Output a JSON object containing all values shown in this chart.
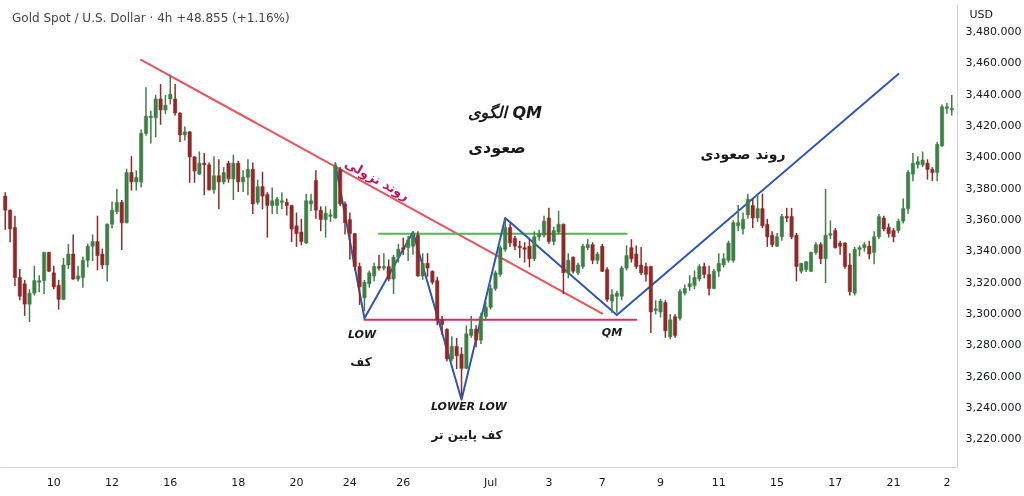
{
  "chart_data": {
    "type": "candlestick",
    "title": "Gold Spot / U.S. Dollar · 4h  +48.855 (+1.16%)",
    "ylabel": "USD",
    "categories": [
      null,
      null,
      null,
      null,
      null,
      null,
      null,
      null,
      null,
      null,
      "10",
      null,
      null,
      null,
      null,
      null,
      null,
      null,
      null,
      null,
      null,
      null,
      "12",
      null,
      null,
      null,
      null,
      null,
      null,
      null,
      null,
      null,
      null,
      null,
      "16",
      null,
      null,
      null,
      null,
      null,
      null,
      null,
      null,
      null,
      null,
      null,
      null,
      null,
      "18",
      null,
      null,
      null,
      null,
      null,
      null,
      null,
      null,
      null,
      null,
      null,
      "20",
      null,
      null,
      null,
      null,
      null,
      null,
      null,
      null,
      null,
      null,
      "24",
      null,
      null,
      null,
      null,
      null,
      null,
      null,
      null,
      null,
      null,
      "26",
      null,
      null,
      null,
      null,
      null,
      null,
      null,
      null,
      null,
      null,
      null,
      null,
      null,
      null,
      null,
      null,
      null,
      "Jul",
      null,
      null,
      null,
      null,
      null,
      null,
      null,
      null,
      null,
      null,
      null,
      "3",
      null,
      null,
      null,
      null,
      null,
      null,
      null,
      null,
      null,
      null,
      "7",
      null,
      null,
      null,
      null,
      null,
      null,
      null,
      null,
      null,
      null,
      null,
      "9",
      null,
      null,
      null,
      null,
      null,
      null,
      null,
      null,
      null,
      null,
      null,
      "11",
      null,
      null,
      null,
      null,
      null,
      null,
      null,
      null,
      null,
      null,
      null,
      "15",
      null,
      null,
      null,
      null,
      null,
      null,
      null,
      null,
      null,
      null,
      null,
      "17",
      null,
      null,
      null,
      null,
      null,
      null,
      null,
      null,
      null,
      null,
      null,
      "21",
      null,
      null,
      null,
      null,
      null,
      null,
      null,
      null,
      null,
      null,
      "2",
      null
    ],
    "ohlc": [
      [
        3375,
        3377,
        3354,
        3366
      ],
      [
        3366,
        3366,
        3346,
        3354
      ],
      [
        3355,
        3362,
        3318,
        3323
      ],
      [
        3323,
        3328,
        3309,
        3311
      ],
      [
        3319,
        3321,
        3299,
        3306
      ],
      [
        3306,
        3315,
        3295,
        3313
      ],
      [
        3313,
        3330,
        3312,
        3321
      ],
      [
        3320,
        3324,
        3314,
        3321
      ],
      [
        3321,
        3339,
        3313,
        3339
      ],
      [
        3339,
        3339,
        3327,
        3327
      ],
      [
        3326,
        3330,
        3316,
        3317
      ],
      [
        3318,
        3321,
        3303,
        3309
      ],
      [
        3309,
        3335,
        3309,
        3331
      ],
      [
        3331,
        3344,
        3329,
        3338
      ],
      [
        3338,
        3350,
        3322,
        3322
      ],
      [
        3322,
        3330,
        3321,
        3324
      ],
      [
        3323,
        3336,
        3317,
        3334
      ],
      [
        3334,
        3344,
        3330,
        3343
      ],
      [
        3343,
        3350,
        3334,
        3346
      ],
      [
        3346,
        3362,
        3328,
        3337
      ],
      [
        3338,
        3341,
        3329,
        3331
      ],
      [
        3331,
        3357,
        3321,
        3357
      ],
      [
        3357,
        3371,
        3355,
        3366
      ],
      [
        3365,
        3379,
        3364,
        3371
      ],
      [
        3371,
        3372,
        3341,
        3358
      ],
      [
        3358,
        3392,
        3358,
        3390
      ],
      [
        3390,
        3400,
        3379,
        3384
      ],
      [
        3384,
        3391,
        3379,
        3387
      ],
      [
        3384,
        3417,
        3381,
        3415
      ],
      [
        3415,
        3444,
        3414,
        3426
      ],
      [
        3425,
        3429,
        3409,
        3426
      ],
      [
        3425,
        3439,
        3413,
        3437
      ],
      [
        3437,
        3446,
        3421,
        3430
      ],
      [
        3430,
        3439,
        3428,
        3433
      ],
      [
        3437,
        3452,
        3434,
        3440
      ],
      [
        3437,
        3446,
        3427,
        3428
      ],
      [
        3428,
        3428,
        3410,
        3414
      ],
      [
        3414,
        3419,
        3411,
        3416
      ],
      [
        3416,
        3416,
        3384,
        3400
      ],
      [
        3400,
        3400,
        3384,
        3391
      ],
      [
        3389,
        3403,
        3389,
        3396
      ],
      [
        3396,
        3402,
        3376,
        3395
      ],
      [
        3395,
        3396,
        3379,
        3379
      ],
      [
        3379,
        3400,
        3377,
        3388
      ],
      [
        3388,
        3398,
        3367,
        3384
      ],
      [
        3384,
        3393,
        3383,
        3390
      ],
      [
        3396,
        3397,
        3384,
        3386
      ],
      [
        3386,
        3401,
        3373,
        3396
      ],
      [
        3396,
        3397,
        3378,
        3384
      ],
      [
        3384,
        3391,
        3378,
        3387
      ],
      [
        3387,
        3398,
        3376,
        3392
      ],
      [
        3392,
        3396,
        3364,
        3370
      ],
      [
        3371,
        3385,
        3370,
        3381
      ],
      [
        3381,
        3390,
        3367,
        3375
      ],
      [
        3376,
        3377,
        3349,
        3369
      ],
      [
        3369,
        3380,
        3364,
        3372
      ],
      [
        3369,
        3374,
        3364,
        3373
      ],
      [
        3371,
        3377,
        3367,
        3372
      ],
      [
        3371,
        3373,
        3363,
        3369
      ],
      [
        3369,
        3369,
        3346,
        3354
      ],
      [
        3356,
        3364,
        3343,
        3351
      ],
      [
        3352,
        3360,
        3344,
        3346
      ],
      [
        3345,
        3376,
        3345,
        3372
      ],
      [
        3370,
        3376,
        3366,
        3372
      ],
      [
        3385,
        3391,
        3361,
        3366
      ],
      [
        3366,
        3368,
        3353,
        3360
      ],
      [
        3360,
        3368,
        3349,
        3364
      ],
      [
        3362,
        3366,
        3359,
        3363
      ],
      [
        3361,
        3395,
        3361,
        3394
      ],
      [
        3392,
        3393,
        3369,
        3370
      ],
      [
        3370,
        3371,
        3351,
        3358
      ],
      [
        3360,
        3364,
        3335,
        3351
      ],
      [
        3351,
        3351,
        3328,
        3330
      ],
      [
        3330,
        3332,
        3306,
        3317
      ],
      [
        3310,
        3321,
        3302,
        3320
      ],
      [
        3319,
        3327,
        3317,
        3326
      ],
      [
        3324,
        3332,
        3321,
        3330
      ],
      [
        3330,
        3337,
        3328,
        3329
      ],
      [
        3329,
        3338,
        3328,
        3330
      ],
      [
        3330,
        3334,
        3321,
        3322
      ],
      [
        3322,
        3337,
        3313,
        3336
      ],
      [
        3336,
        3344,
        3333,
        3341
      ],
      [
        3342,
        3348,
        3338,
        3341
      ],
      [
        3342,
        3349,
        3334,
        3347
      ],
      [
        3343,
        3352,
        3338,
        3351
      ],
      [
        3350,
        3352,
        3324,
        3324
      ],
      [
        3324,
        3338,
        3322,
        3332
      ],
      [
        3332,
        3338,
        3324,
        3329
      ],
      [
        3327,
        3327,
        3319,
        3320
      ],
      [
        3321,
        3323,
        3293,
        3296
      ],
      [
        3296,
        3298,
        3287,
        3293
      ],
      [
        3290,
        3290,
        3270,
        3271
      ],
      [
        3271,
        3285,
        3270,
        3279
      ],
      [
        3279,
        3284,
        3265,
        3273
      ],
      [
        3274,
        3278,
        3248,
        3265
      ],
      [
        3265,
        3292,
        3265,
        3287
      ],
      [
        3286,
        3298,
        3285,
        3290
      ],
      [
        3290,
        3292,
        3279,
        3283
      ],
      [
        3283,
        3300,
        3281,
        3298
      ],
      [
        3298,
        3307,
        3296,
        3304
      ],
      [
        3304,
        3318,
        3303,
        3316
      ],
      [
        3316,
        3327,
        3315,
        3326
      ],
      [
        3325,
        3343,
        3324,
        3342
      ],
      [
        3341,
        3360,
        3340,
        3355
      ],
      [
        3355,
        3357,
        3343,
        3345
      ],
      [
        3348,
        3349,
        3341,
        3343
      ],
      [
        3343,
        3346,
        3336,
        3342
      ],
      [
        3342,
        3345,
        3333,
        3341
      ],
      [
        3343,
        3347,
        3330,
        3335
      ],
      [
        3335,
        3352,
        3334,
        3349
      ],
      [
        3349,
        3353,
        3347,
        3351
      ],
      [
        3350,
        3362,
        3349,
        3359
      ],
      [
        3361,
        3367,
        3345,
        3346
      ],
      [
        3346,
        3355,
        3344,
        3353
      ],
      [
        3352,
        3365,
        3351,
        3357
      ],
      [
        3357,
        3357,
        3313,
        3326
      ],
      [
        3326,
        3338,
        3323,
        3334
      ],
      [
        3336,
        3336,
        3326,
        3327
      ],
      [
        3326,
        3332,
        3325,
        3331
      ],
      [
        3330,
        3344,
        3329,
        3343
      ],
      [
        3342,
        3347,
        3341,
        3344
      ],
      [
        3344,
        3345,
        3332,
        3334
      ],
      [
        3334,
        3339,
        3332,
        3338
      ],
      [
        3343,
        3344,
        3327,
        3327
      ],
      [
        3328,
        3329,
        3308,
        3309
      ],
      [
        3308,
        3315,
        3301,
        3312
      ],
      [
        3311,
        3314,
        3301,
        3313
      ],
      [
        3311,
        3330,
        3309,
        3329
      ],
      [
        3329,
        3343,
        3328,
        3337
      ],
      [
        3342,
        3347,
        3333,
        3335
      ],
      [
        3338,
        3343,
        3329,
        3330
      ],
      [
        3331,
        3342,
        3325,
        3326
      ],
      [
        3330,
        3332,
        3321,
        3325
      ],
      [
        3330,
        3330,
        3288,
        3301
      ],
      [
        3302,
        3308,
        3300,
        3303
      ],
      [
        3301,
        3309,
        3298,
        3308
      ],
      [
        3307,
        3308,
        3285,
        3289
      ],
      [
        3285,
        3299,
        3284,
        3296
      ],
      [
        3298,
        3299,
        3285,
        3286
      ],
      [
        3297,
        3315,
        3296,
        3314
      ],
      [
        3313,
        3318,
        3312,
        3316
      ],
      [
        3317,
        3324,
        3315,
        3319
      ],
      [
        3318,
        3327,
        3316,
        3323
      ],
      [
        3322,
        3331,
        3321,
        3330
      ],
      [
        3330,
        3332,
        3323,
        3325
      ],
      [
        3325,
        3330,
        3312,
        3316
      ],
      [
        3316,
        3328,
        3316,
        3327
      ],
      [
        3327,
        3338,
        3324,
        3332
      ],
      [
        3331,
        3338,
        3330,
        3335
      ],
      [
        3334,
        3346,
        3333,
        3345
      ],
      [
        3334,
        3359,
        3333,
        3358
      ],
      [
        3356,
        3369,
        3353,
        3358
      ],
      [
        3354,
        3364,
        3351,
        3360
      ],
      [
        3363,
        3376,
        3361,
        3373
      ],
      [
        3369,
        3373,
        3355,
        3361
      ],
      [
        3361,
        3376,
        3359,
        3367
      ],
      [
        3367,
        3376,
        3355,
        3356
      ],
      [
        3357,
        3360,
        3343,
        3349
      ],
      [
        3350,
        3352,
        3343,
        3344
      ],
      [
        3343,
        3351,
        3343,
        3349
      ],
      [
        3349,
        3363,
        3347,
        3362
      ],
      [
        3362,
        3367,
        3359,
        3361
      ],
      [
        3362,
        3367,
        3348,
        3349
      ],
      [
        3350,
        3351,
        3321,
        3330
      ],
      [
        3327,
        3332,
        3326,
        3332
      ],
      [
        3328,
        3333,
        3327,
        3333
      ],
      [
        3327,
        3339,
        3327,
        3339
      ],
      [
        3339,
        3345,
        3338,
        3344
      ],
      [
        3344,
        3345,
        3332,
        3335
      ],
      [
        3335,
        3379,
        3320,
        3350
      ],
      [
        3350,
        3359,
        3348,
        3351
      ],
      [
        3353,
        3354,
        3342,
        3342
      ],
      [
        3345,
        3346,
        3338,
        3343
      ],
      [
        3345,
        3345,
        3329,
        3330
      ],
      [
        3331,
        3338,
        3312,
        3314
      ],
      [
        3313,
        3342,
        3312,
        3341
      ],
      [
        3341,
        3343,
        3337,
        3342
      ],
      [
        3342,
        3345,
        3340,
        3344
      ],
      [
        3343,
        3346,
        3335,
        3338
      ],
      [
        3339,
        3352,
        3332,
        3349
      ],
      [
        3349,
        3363,
        3348,
        3362
      ],
      [
        3361,
        3362,
        3353,
        3354
      ],
      [
        3355,
        3357,
        3349,
        3351
      ],
      [
        3353,
        3354,
        3346,
        3349
      ],
      [
        3353,
        3360,
        3352,
        3359
      ],
      [
        3359,
        3373,
        3358,
        3367
      ],
      [
        3367,
        3391,
        3364,
        3390
      ],
      [
        3389,
        3402,
        3385,
        3396
      ],
      [
        3395,
        3400,
        3393,
        3397
      ],
      [
        3395,
        3403,
        3394,
        3398
      ],
      [
        3396,
        3398,
        3386,
        3392
      ],
      [
        3392,
        3393,
        3385,
        3390
      ],
      [
        3390,
        3409,
        3385,
        3408
      ],
      [
        3407,
        3433,
        3407,
        3432
      ],
      [
        3431,
        3434,
        3428,
        3432
      ],
      [
        3430,
        3439,
        3427,
        3431
      ]
    ],
    "colors": [
      "#8e2a2a",
      "#8e2a2a",
      "#8e2a2a",
      "#8e2a2a",
      "#8e2a2a",
      "#3f7f47",
      "#3f7f47",
      "#3f7f47",
      "#3f7f47",
      "#8e2a2a",
      "#8e2a2a",
      "#8e2a2a",
      "#3f7f47",
      "#3f7f47",
      "#8e2a2a",
      "#3f7f47",
      "#3f7f47",
      "#3f7f47",
      "#3f7f47",
      "#8e2a2a",
      "#8e2a2a",
      "#3f7f47",
      "#3f7f47",
      "#3f7f47",
      "#8e2a2a",
      "#3f7f47",
      "#8e2a2a",
      "#3f7f47",
      "#3f7f47",
      "#3f7f47",
      "#3f7f47",
      "#3f7f47",
      "#8e2a2a",
      "#3f7f47",
      "#3f7f47",
      "#8e2a2a",
      "#8e2a2a",
      "#3f7f47",
      "#8e2a2a",
      "#8e2a2a",
      "#3f7f47",
      "#8e2a2a",
      "#8e2a2a",
      "#3f7f47",
      "#8e2a2a",
      "#3f7f47",
      "#8e2a2a",
      "#3f7f47",
      "#8e2a2a",
      "#3f7f47",
      "#3f7f47",
      "#8e2a2a",
      "#3f7f47",
      "#8e2a2a",
      "#8e2a2a",
      "#3f7f47",
      "#3f7f47",
      "#3f7f47",
      "#8e2a2a",
      "#8e2a2a",
      "#8e2a2a",
      "#8e2a2a",
      "#3f7f47",
      "#3f7f47",
      "#8e2a2a",
      "#8e2a2a",
      "#3f7f47",
      "#3f7f47",
      "#3f7f47",
      "#8e2a2a",
      "#8e2a2a",
      "#8e2a2a",
      "#8e2a2a",
      "#8e2a2a",
      "#3f7f47",
      "#3f7f47",
      "#3f7f47",
      "#8e2a2a",
      "#3f7f47",
      "#8e2a2a",
      "#3f7f47",
      "#3f7f47",
      "#8e2a2a",
      "#3f7f47",
      "#3f7f47",
      "#8e2a2a",
      "#3f7f47",
      "#8e2a2a",
      "#8e2a2a",
      "#8e2a2a",
      "#8e2a2a",
      "#8e2a2a",
      "#3f7f47",
      "#8e2a2a",
      "#8e2a2a",
      "#3f7f47",
      "#3f7f47",
      "#8e2a2a",
      "#3f7f47",
      "#3f7f47",
      "#3f7f47",
      "#3f7f47",
      "#3f7f47",
      "#3f7f47",
      "#8e2a2a",
      "#8e2a2a",
      "#8e2a2a",
      "#8e2a2a",
      "#8e2a2a",
      "#3f7f47",
      "#3f7f47",
      "#3f7f47",
      "#8e2a2a",
      "#3f7f47",
      "#3f7f47",
      "#8e2a2a",
      "#3f7f47",
      "#8e2a2a",
      "#3f7f47",
      "#3f7f47",
      "#3f7f47",
      "#8e2a2a",
      "#3f7f47",
      "#8e2a2a",
      "#8e2a2a",
      "#3f7f47",
      "#3f7f47",
      "#3f7f47",
      "#3f7f47",
      "#8e2a2a",
      "#8e2a2a",
      "#8e2a2a",
      "#8e2a2a",
      "#8e2a2a",
      "#3f7f47",
      "#3f7f47",
      "#8e2a2a",
      "#3f7f47",
      "#8e2a2a",
      "#3f7f47",
      "#3f7f47",
      "#3f7f47",
      "#3f7f47",
      "#3f7f47",
      "#8e2a2a",
      "#8e2a2a",
      "#3f7f47",
      "#3f7f47",
      "#3f7f47",
      "#3f7f47",
      "#3f7f47",
      "#3f7f47",
      "#3f7f47",
      "#3f7f47",
      "#8e2a2a",
      "#3f7f47",
      "#8e2a2a",
      "#8e2a2a",
      "#8e2a2a",
      "#3f7f47",
      "#3f7f47",
      "#8e2a2a",
      "#8e2a2a",
      "#8e2a2a",
      "#3f7f47",
      "#3f7f47",
      "#3f7f47",
      "#3f7f47",
      "#8e2a2a",
      "#3f7f47",
      "#3f7f47",
      "#8e2a2a",
      "#8e2a2a",
      "#8e2a2a",
      "#8e2a2a",
      "#3f7f47",
      "#3f7f47",
      "#3f7f47",
      "#8e2a2a",
      "#3f7f47",
      "#3f7f47",
      "#8e2a2a",
      "#8e2a2a",
      "#8e2a2a",
      "#3f7f47",
      "#3f7f47",
      "#3f7f47",
      "#3f7f47",
      "#3f7f47",
      "#3f7f47",
      "#8e2a2a",
      "#8e2a2a",
      "#3f7f47",
      "#3f7f47",
      "#3f7f47",
      "#3f7f47"
    ],
    "series": [
      {
        "type": "line",
        "color": "#e8535d",
        "values": [
          null,
          null,
          null,
          null,
          null,
          null,
          null,
          null,
          null,
          null,
          null,
          null,
          null,
          null,
          null,
          null,
          null,
          null,
          null,
          null,
          null,
          null,
          null,
          null,
          null,
          null,
          null,
          null,
          3462,
          null,
          null,
          null,
          null,
          null,
          null,
          null,
          null,
          null,
          null,
          null,
          null,
          null,
          null,
          null,
          null,
          null,
          null,
          null,
          null,
          null,
          null,
          null,
          null,
          null,
          null,
          null,
          null,
          null,
          null,
          null,
          null,
          null,
          null,
          null,
          null,
          null,
          null,
          null,
          null,
          null,
          null,
          null,
          null,
          null,
          null,
          null,
          null,
          null,
          null,
          null,
          null,
          null,
          null,
          null,
          null,
          null,
          null,
          null,
          null,
          null,
          null,
          null,
          null,
          null,
          null,
          null,
          null,
          null,
          null,
          null,
          null,
          null,
          null,
          null,
          null,
          null,
          null,
          null,
          null,
          null,
          null,
          null,
          null,
          null,
          null,
          null,
          null,
          null,
          null,
          null,
          null,
          null,
          null,
          3300,
          null,
          null,
          null,
          null,
          null,
          null,
          null,
          null,
          null,
          null,
          null,
          null,
          null,
          null,
          null,
          null,
          null,
          null,
          null,
          null,
          null,
          null,
          null,
          null,
          null,
          null,
          null,
          null,
          null,
          null,
          null,
          null,
          null,
          null,
          null,
          null,
          null,
          null,
          null,
          null,
          null,
          null,
          null,
          null,
          null,
          null,
          null,
          null,
          null,
          null,
          null,
          null,
          null,
          null,
          null,
          null,
          null,
          null,
          null,
          null,
          null,
          null,
          null,
          null,
          null,
          null,
          null,
          null,
          null,
          null,
          null,
          null
        ]
      },
      {
        "type": "line",
        "color": "#4cbb4c",
        "values": [
          null,
          null,
          null,
          null,
          null,
          null,
          null,
          null,
          null,
          null,
          null,
          null,
          null,
          null,
          null,
          null,
          null,
          null,
          null,
          null,
          null,
          null,
          null,
          null,
          null,
          null,
          null,
          null,
          null,
          null,
          null,
          null,
          null,
          null,
          null,
          null,
          null,
          null,
          null,
          null,
          null,
          null,
          null,
          null,
          null,
          null,
          null,
          null,
          null,
          null,
          null,
          null,
          null,
          null,
          null,
          null,
          null,
          null,
          null,
          null,
          null,
          null,
          null,
          null,
          null,
          null,
          null,
          null,
          null,
          null,
          null,
          null,
          null,
          null,
          null,
          null,
          null,
          3351,
          null,
          null,
          null,
          null,
          null,
          null,
          null,
          null,
          null,
          null,
          null,
          null,
          null,
          null,
          null,
          null,
          null,
          null,
          null,
          null,
          null,
          null,
          null,
          null,
          null,
          null,
          null,
          null,
          null,
          null,
          null,
          null,
          null,
          null,
          null,
          null,
          null,
          null,
          null,
          null,
          null,
          null,
          null,
          null,
          null,
          null,
          null,
          null,
          null,
          null,
          3351,
          null,
          null,
          null,
          null,
          null,
          null,
          null,
          null,
          null,
          null,
          null,
          null,
          null,
          null,
          null,
          null,
          null,
          null,
          null,
          null,
          null,
          null,
          null,
          null,
          null,
          null,
          null,
          null,
          null,
          null,
          null,
          null,
          null,
          null,
          null,
          null,
          null,
          null,
          null,
          null,
          null,
          null,
          null,
          null,
          null,
          null,
          null,
          null,
          null,
          null,
          null,
          null,
          null,
          null,
          null,
          null,
          null,
          null,
          null,
          null,
          null,
          null,
          null,
          null,
          null,
          null,
          null
        ]
      },
      {
        "type": "line",
        "color": "#dc2f5f",
        "values": [
          null,
          null,
          null,
          null,
          null,
          null,
          null,
          null,
          null,
          null,
          null,
          null,
          null,
          null,
          null,
          null,
          null,
          null,
          null,
          null,
          null,
          null,
          null,
          null,
          null,
          null,
          null,
          null,
          null,
          null,
          null,
          null,
          null,
          null,
          null,
          null,
          null,
          null,
          null,
          null,
          null,
          null,
          null,
          null,
          null,
          null,
          null,
          null,
          null,
          null,
          null,
          null,
          null,
          null,
          null,
          null,
          null,
          null,
          null,
          null,
          null,
          null,
          null,
          null,
          null,
          null,
          null,
          null,
          null,
          null,
          null,
          null,
          null,
          null,
          3296,
          null,
          null,
          null,
          null,
          null,
          null,
          null,
          null,
          null,
          null,
          null,
          null,
          null,
          null,
          null,
          null,
          null,
          null,
          null,
          null,
          null,
          null,
          null,
          null,
          null,
          null,
          null,
          null,
          null,
          null,
          null,
          null,
          null,
          null,
          null,
          null,
          null,
          null,
          null,
          null,
          null,
          null,
          null,
          null,
          null,
          null,
          null,
          null,
          null,
          null,
          null,
          null,
          null,
          null,
          null,
          3296,
          null,
          null,
          null,
          null,
          null,
          null,
          null,
          null,
          null,
          null,
          null,
          null,
          null,
          null,
          null,
          null,
          null,
          null,
          null,
          null,
          null,
          null,
          null,
          null,
          null,
          null,
          null,
          null,
          null,
          null,
          null,
          null,
          null,
          null,
          null,
          null,
          null,
          null,
          null,
          null,
          null,
          null,
          null,
          null,
          null,
          null,
          null,
          null,
          null,
          null,
          null,
          null,
          null,
          null,
          null,
          null,
          null,
          null,
          null,
          null,
          null,
          null,
          null,
          null,
          null
        ]
      },
      {
        "type": "line",
        "color": "#2f56b5",
        "values": [
          null,
          null,
          null,
          null,
          null,
          null,
          null,
          null,
          null,
          null,
          null,
          null,
          null,
          null,
          null,
          null,
          null,
          null,
          null,
          null,
          null,
          null,
          null,
          null,
          null,
          null,
          null,
          null,
          null,
          null,
          null,
          null,
          null,
          null,
          null,
          null,
          null,
          null,
          null,
          null,
          null,
          null,
          null,
          null,
          null,
          null,
          null,
          null,
          null,
          null,
          null,
          null,
          null,
          null,
          null,
          null,
          null,
          null,
          null,
          null,
          null,
          null,
          null,
          null,
          null,
          null,
          null,
          null,
          3396,
          null,
          null,
          null,
          null,
          null,
          3297,
          null,
          null,
          null,
          null,
          null,
          null,
          null,
          null,
          null,
          3352,
          null,
          null,
          null,
          null,
          null,
          null,
          null,
          null,
          null,
          3245,
          null,
          null,
          null,
          null,
          null,
          null,
          null,
          null,
          3361,
          null,
          null,
          null,
          null,
          null,
          null,
          null,
          null,
          null,
          null,
          null,
          null,
          null,
          null,
          null,
          null,
          null,
          null,
          null,
          null,
          null,
          null,
          3299,
          null,
          null,
          null,
          null,
          null,
          null,
          null,
          null,
          null,
          null,
          null,
          null,
          null,
          null,
          null,
          null,
          null,
          null,
          null,
          null,
          null,
          null,
          null,
          null,
          null,
          null,
          null,
          null,
          null,
          null,
          null,
          null,
          null,
          null,
          null,
          null,
          null,
          null,
          null,
          null,
          null,
          null,
          null,
          null,
          null,
          null,
          null,
          null,
          null,
          null,
          null,
          null,
          null,
          null,
          null,
          null,
          null,
          3453,
          null,
          null,
          null,
          null,
          null,
          null,
          null,
          null,
          null,
          null,
          null
        ]
      }
    ],
    "annotations": [
      "الگوی QM",
      "صعودی",
      "روند نزولی",
      "روند صعودی",
      "LOW",
      "کف",
      "LOWER LOW",
      "کف پایین تر",
      "QM"
    ],
    "ylim": [
      3202,
      3497
    ],
    "yticks": [
      {
        "value": 3220,
        "label": "3,220.000"
      },
      {
        "value": 3240,
        "label": "3,240.000"
      },
      {
        "value": 3260,
        "label": "3,260.000"
      },
      {
        "value": 3280,
        "label": "3,280.000"
      },
      {
        "value": 3300,
        "label": "3,300.000"
      },
      {
        "value": 3320,
        "label": "3,320.000"
      },
      {
        "value": 3340,
        "label": "3,340.000"
      },
      {
        "value": 3360,
        "label": "3,360.000"
      },
      {
        "value": 3380,
        "label": "3,380.000"
      },
      {
        "value": 3400,
        "label": "3,400.000"
      },
      {
        "value": 3420,
        "label": "3,420.000"
      },
      {
        "value": 3440,
        "label": "3,440.000"
      },
      {
        "value": 3460,
        "label": "3,460.000"
      },
      {
        "value": 3480,
        "label": "3,480.000"
      }
    ],
    "grid": false
  }
}
